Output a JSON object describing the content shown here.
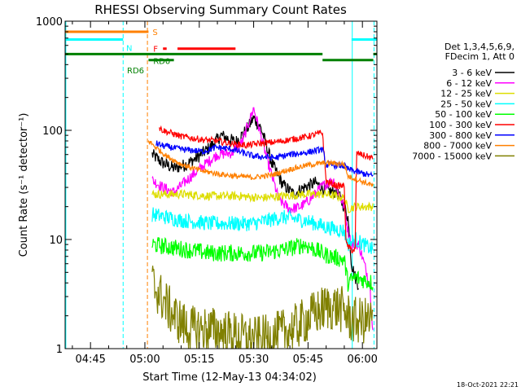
{
  "chart_data": {
    "type": "line",
    "title": "RHESSI Observing Summary Count Rates",
    "xlabel": "Start Time (12-May-13 04:34:02)",
    "ylabel": "Count Rate (s⁻¹ detector⁻¹)",
    "y_scale": "log",
    "ylim": [
      1,
      1000
    ],
    "xlim_minutes": [
      278,
      364
    ],
    "x_ticks": [
      {
        "minute": 285,
        "label": "04:45"
      },
      {
        "minute": 300,
        "label": "05:00"
      },
      {
        "minute": 315,
        "label": "05:15"
      },
      {
        "minute": 330,
        "label": "05:30"
      },
      {
        "minute": 345,
        "label": "05:45"
      },
      {
        "minute": 360,
        "label": "06:00"
      }
    ],
    "y_ticks": [
      {
        "value": 1,
        "label": "1"
      },
      {
        "value": 10,
        "label": "10"
      },
      {
        "value": 100,
        "label": "100"
      },
      {
        "value": 1000,
        "label": "1000"
      }
    ],
    "legend": {
      "placement": "right",
      "header": [
        "Det 1,3,4,5,6,9,",
        "FDecim 1, Att 0"
      ],
      "entries": [
        {
          "label": "3 - 6 keV",
          "color": "#000000"
        },
        {
          "label": "6 - 12 keV",
          "color": "#ff00ff"
        },
        {
          "label": "12 - 25 keV",
          "color": "#dddd00"
        },
        {
          "label": "25 - 50 keV",
          "color": "#00ffff"
        },
        {
          "label": "50 - 100 keV",
          "color": "#00ff00"
        },
        {
          "label": "100 - 300 keV",
          "color": "#ff0000"
        },
        {
          "label": "300 - 800 keV",
          "color": "#0000ff"
        },
        {
          "label": "800 - 7000 keV",
          "color": "#ff8000"
        },
        {
          "label": "7000 - 15000 keV",
          "color": "#808000"
        }
      ]
    },
    "flags": [
      {
        "label": "S",
        "color": "#ff8000",
        "y": 800,
        "segments": [
          [
            278,
            301
          ]
        ]
      },
      {
        "label": "N",
        "color": "#00ffff",
        "y": 680,
        "segments": [
          [
            278,
            294
          ],
          [
            357,
            364
          ]
        ]
      },
      {
        "label": "F",
        "color": "#ff0000",
        "y": 560,
        "segments": [
          [
            305,
            306
          ],
          [
            309,
            325
          ]
        ]
      },
      {
        "label": "RD0",
        "color": "#008000",
        "y": 500,
        "segments": [
          [
            278,
            349
          ],
          [
            363,
            364
          ]
        ]
      },
      {
        "label": "RD6",
        "color": "#008000",
        "y": 440,
        "segments": [
          [
            301,
            308
          ],
          [
            349,
            363
          ]
        ]
      }
    ],
    "vertical_lines": [
      {
        "minute": 278.2,
        "color": "#00ffff",
        "style": "solid"
      },
      {
        "minute": 294.0,
        "color": "#00ffff",
        "style": "dashed"
      },
      {
        "minute": 300.7,
        "color": "#ff8000",
        "style": "dashed"
      },
      {
        "minute": 357.2,
        "color": "#00ffff",
        "style": "solid"
      },
      {
        "minute": 363.2,
        "color": "#00ffff",
        "style": "dashed"
      }
    ],
    "series": [
      {
        "name": "3 - 6 keV",
        "color": "#000000",
        "noise": 0.06,
        "points": [
          [
            302,
            60
          ],
          [
            305,
            50
          ],
          [
            308,
            45
          ],
          [
            311,
            48
          ],
          [
            314,
            55
          ],
          [
            318,
            70
          ],
          [
            321,
            90
          ],
          [
            325,
            78
          ],
          [
            328,
            100
          ],
          [
            330,
            130
          ],
          [
            332,
            105
          ],
          [
            335,
            50
          ],
          [
            338,
            32
          ],
          [
            341,
            26
          ],
          [
            344,
            30
          ],
          [
            347,
            33
          ],
          [
            350,
            28
          ],
          [
            353,
            27
          ],
          [
            355,
            20
          ],
          [
            356,
            16
          ],
          [
            357,
            6
          ],
          [
            358,
            4.5
          ],
          [
            359,
            3.8
          ]
        ]
      },
      {
        "name": "6 - 12 keV",
        "color": "#ff00ff",
        "noise": 0.05,
        "points": [
          [
            302,
            35
          ],
          [
            305,
            30
          ],
          [
            308,
            27
          ],
          [
            312,
            36
          ],
          [
            316,
            47
          ],
          [
            320,
            60
          ],
          [
            324,
            62
          ],
          [
            327,
            80
          ],
          [
            330,
            160
          ],
          [
            332,
            90
          ],
          [
            334,
            50
          ],
          [
            337,
            23
          ],
          [
            340,
            19
          ],
          [
            343,
            20
          ],
          [
            346,
            24
          ],
          [
            349,
            31
          ],
          [
            352,
            35
          ],
          [
            355,
            20
          ],
          [
            356,
            12
          ],
          [
            357,
            9
          ],
          [
            359,
            9
          ],
          [
            362,
            4
          ],
          [
            363,
            1.3
          ]
        ]
      },
      {
        "name": "12 - 25 keV",
        "color": "#dddd00",
        "noise": 0.04,
        "points": [
          [
            302,
            26
          ],
          [
            310,
            26
          ],
          [
            318,
            25
          ],
          [
            326,
            25
          ],
          [
            332,
            24
          ],
          [
            338,
            25
          ],
          [
            344,
            26
          ],
          [
            350,
            26
          ],
          [
            355,
            24
          ],
          [
            356,
            19
          ],
          [
            358,
            20
          ],
          [
            363,
            20
          ]
        ]
      },
      {
        "name": "25 - 50 keV",
        "color": "#00ffff",
        "noise": 0.07,
        "points": [
          [
            302,
            17
          ],
          [
            310,
            15
          ],
          [
            318,
            14
          ],
          [
            326,
            14
          ],
          [
            330,
            14
          ],
          [
            334,
            15
          ],
          [
            338,
            16
          ],
          [
            344,
            15
          ],
          [
            350,
            13
          ],
          [
            355,
            12
          ],
          [
            356,
            9
          ],
          [
            358,
            10
          ],
          [
            363,
            8
          ]
        ]
      },
      {
        "name": "50 - 100 keV",
        "color": "#00ff00",
        "noise": 0.08,
        "points": [
          [
            302,
            9
          ],
          [
            310,
            8.2
          ],
          [
            318,
            7.5
          ],
          [
            326,
            7.5
          ],
          [
            332,
            7.5
          ],
          [
            338,
            8
          ],
          [
            344,
            9
          ],
          [
            350,
            7.2
          ],
          [
            355,
            6.5
          ],
          [
            356,
            4
          ],
          [
            358,
            4.5
          ],
          [
            363,
            4
          ]
        ]
      },
      {
        "name": "100 - 300 keV",
        "color": "#ff0000",
        "noise": 0.03,
        "points": [
          [
            304,
            105
          ],
          [
            305,
            100
          ],
          [
            310,
            88
          ],
          [
            316,
            82
          ],
          [
            320,
            80
          ],
          [
            324,
            75
          ],
          [
            328,
            73
          ],
          [
            332,
            76
          ],
          [
            336,
            78
          ],
          [
            340,
            82
          ],
          [
            345,
            88
          ],
          [
            349,
            95
          ],
          [
            350,
            34
          ],
          [
            353,
            31
          ],
          [
            355,
            31
          ],
          [
            355.5,
            9
          ],
          [
            357,
            8
          ],
          [
            358,
            8
          ],
          [
            358.4,
            62
          ],
          [
            361,
            58
          ],
          [
            363,
            55
          ]
        ]
      },
      {
        "name": "300 - 800 keV",
        "color": "#0000ff",
        "noise": 0.03,
        "points": [
          [
            303,
            76
          ],
          [
            305,
            72
          ],
          [
            310,
            67
          ],
          [
            316,
            64
          ],
          [
            320,
            70
          ],
          [
            324,
            67
          ],
          [
            330,
            58
          ],
          [
            336,
            56
          ],
          [
            340,
            60
          ],
          [
            345,
            63
          ],
          [
            349,
            67
          ],
          [
            350,
            48
          ],
          [
            353,
            48
          ],
          [
            355,
            47
          ],
          [
            356,
            44
          ],
          [
            358,
            42
          ],
          [
            363,
            38
          ]
        ]
      },
      {
        "name": "800 - 7000 keV",
        "color": "#ff8000",
        "noise": 0.025,
        "points": [
          [
            301,
            80
          ],
          [
            303,
            70
          ],
          [
            306,
            58
          ],
          [
            310,
            49
          ],
          [
            315,
            43
          ],
          [
            320,
            40
          ],
          [
            325,
            38
          ],
          [
            330,
            37
          ],
          [
            335,
            39
          ],
          [
            340,
            44
          ],
          [
            345,
            48
          ],
          [
            349,
            50
          ],
          [
            352,
            50
          ],
          [
            355,
            49
          ],
          [
            356,
            38
          ],
          [
            358,
            36
          ],
          [
            363,
            31
          ]
        ]
      },
      {
        "name": "7000 - 15000 keV",
        "color": "#808000",
        "noise": 0.22,
        "points": [
          [
            302,
            4
          ],
          [
            305,
            2.8
          ],
          [
            308,
            2
          ],
          [
            312,
            1.5
          ],
          [
            318,
            1.5
          ],
          [
            322,
            1.4
          ],
          [
            326,
            1.3
          ],
          [
            330,
            1.2
          ],
          [
            334,
            1.25
          ],
          [
            338,
            1.4
          ],
          [
            342,
            1.6
          ],
          [
            346,
            2
          ],
          [
            350,
            2.4
          ],
          [
            353,
            2.4
          ],
          [
            355,
            2.2
          ],
          [
            357,
            1.8
          ],
          [
            360,
            1.8
          ],
          [
            363,
            1.8
          ]
        ]
      }
    ]
  },
  "footer": {
    "date_stamp": "18-Oct-2021 22:21"
  }
}
